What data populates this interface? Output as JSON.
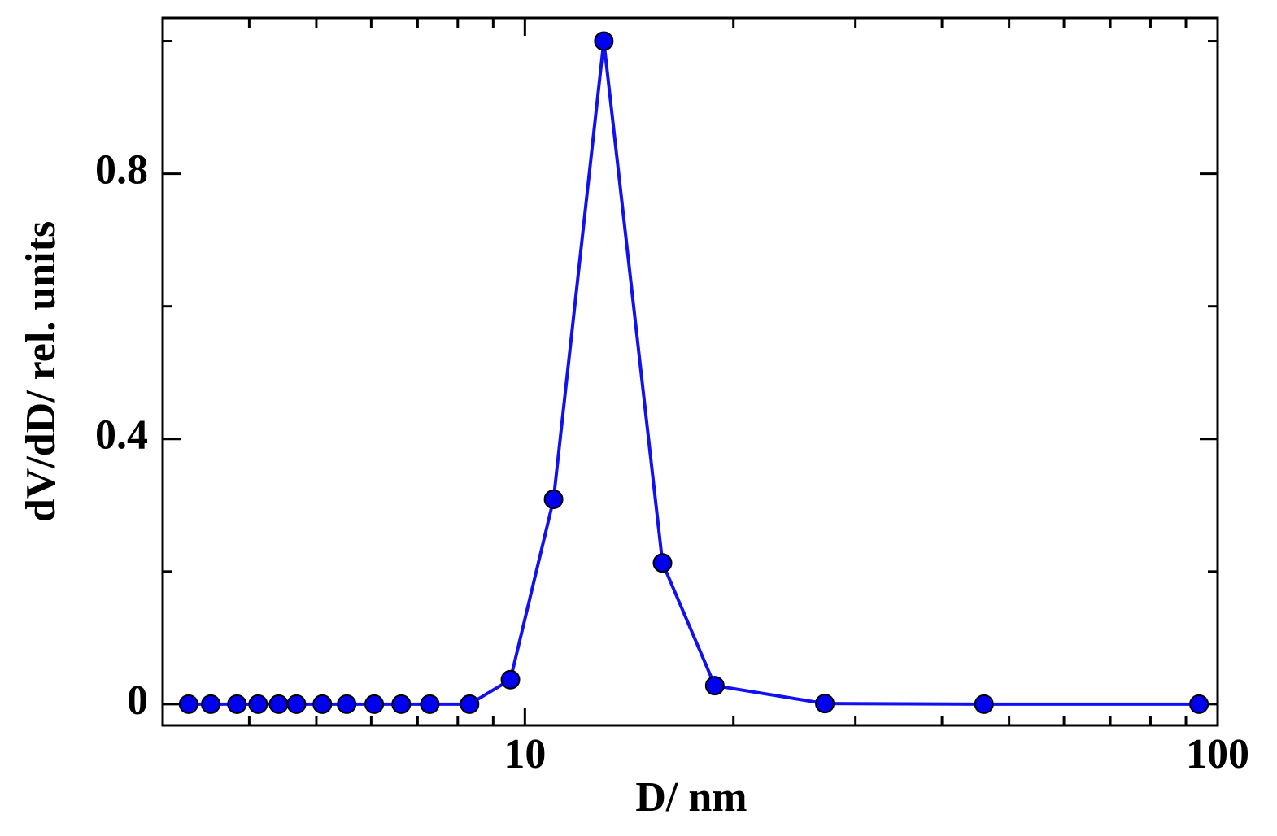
{
  "chart_data": {
    "type": "line",
    "x_label": "D/ nm",
    "y_label": "dV/dD/ rel. units",
    "x": [
      3.27,
      3.52,
      3.84,
      4.12,
      4.41,
      4.68,
      5.1,
      5.53,
      6.06,
      6.63,
      7.29,
      8.32,
      9.53,
      11.0,
      13.0,
      15.8,
      18.8,
      27.1,
      46.0,
      94.0
    ],
    "series": [
      {
        "name": "dV/dD",
        "color": "#1010f0",
        "marker_color": "#0000ee",
        "values": [
          0,
          0,
          0,
          0,
          0,
          0,
          0,
          0,
          0,
          0,
          0,
          0,
          0.037,
          0.309,
          1.0,
          0.213,
          0.028,
          0.001,
          0,
          0
        ]
      }
    ],
    "xscale": "log",
    "xlim": [
      3,
      100
    ],
    "xticks": [
      10,
      100
    ],
    "xminorticks": [
      4,
      5,
      6,
      7,
      8,
      9,
      20,
      30,
      40,
      50,
      60,
      70,
      80,
      90
    ],
    "ylim": [
      -0.032,
      1.035
    ],
    "yticks": [
      0,
      0.4,
      0.8
    ],
    "yminorticks": [
      0.2,
      0.6,
      1.0
    ]
  }
}
